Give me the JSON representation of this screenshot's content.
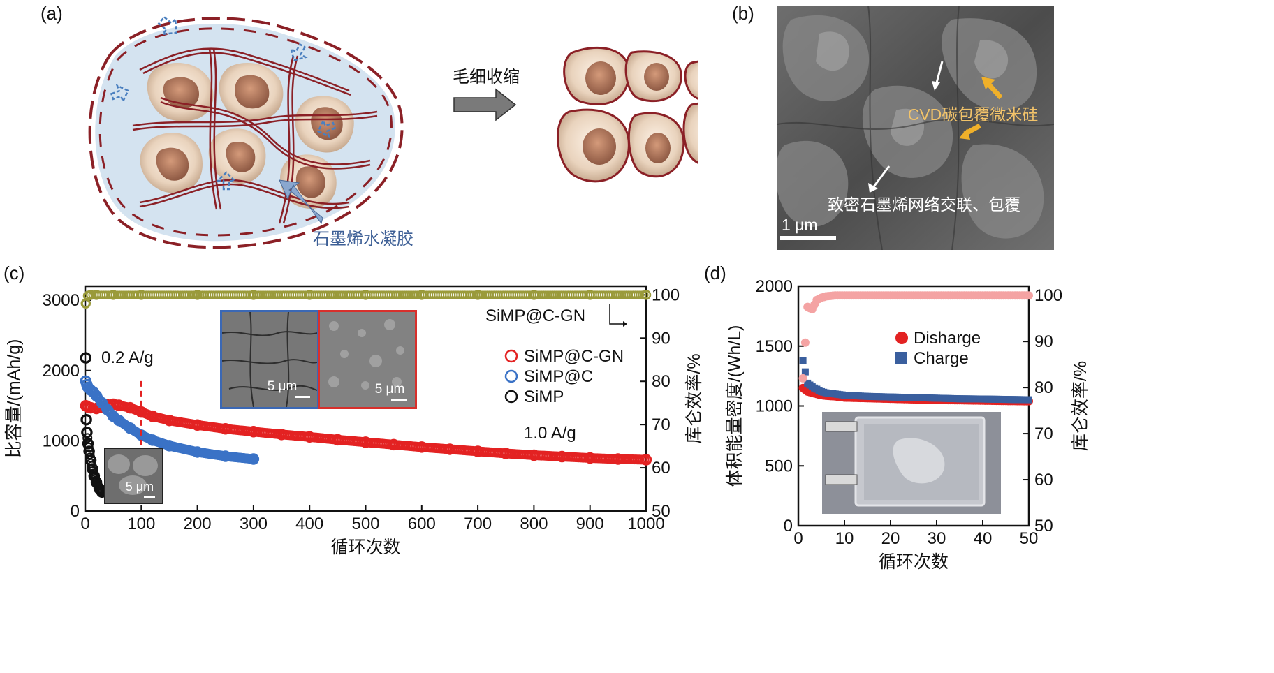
{
  "panel_labels": {
    "a": "(a)",
    "b": "(b)",
    "c": "(c)",
    "d": "(d)"
  },
  "schematic": {
    "process_label": "毛细收缩",
    "hydrogel_label": "石墨烯水凝胶"
  },
  "sem_b": {
    "label_top": "CVD碳包覆微米硅",
    "label_bottom": "致密石墨烯网络交联、包覆",
    "scale": "1 μm"
  },
  "chart_data": [
    {
      "type": "scatter",
      "panel": "c",
      "xlabel": "循环次数",
      "ylabel": "比容量/(mAh/g)",
      "y2label": "库仑效率/%",
      "xlim": [
        0,
        1000
      ],
      "ylim": [
        0,
        3200
      ],
      "y2lim": [
        50,
        102
      ],
      "xticks": [
        "0",
        "100",
        "200",
        "300",
        "400",
        "500",
        "600",
        "700",
        "800",
        "900",
        "1000"
      ],
      "yticks": [
        "0",
        "1000",
        "2000",
        "3000"
      ],
      "y2ticks": [
        "50",
        "60",
        "70",
        "80",
        "90",
        "100"
      ],
      "annotations": {
        "rate1": "0.2 A/g",
        "rate2": "1.0 A/g",
        "ce_series": "SiMP@C-GN",
        "scale1": "5 μm",
        "scale2": "5 μm",
        "scale3": "5 μm"
      },
      "legend": {
        "placement": "right",
        "entries": [
          "SiMP@C-GN",
          "SiMP@C",
          "SiMP"
        ]
      },
      "series": [
        {
          "name": "SiMP@C-GN",
          "color": "#e32222",
          "x": [
            1,
            3,
            5,
            10,
            20,
            30,
            40,
            50,
            60,
            80,
            100,
            120,
            150,
            200,
            250,
            300,
            350,
            400,
            450,
            500,
            550,
            600,
            650,
            700,
            750,
            800,
            850,
            900,
            950,
            1000
          ],
          "y": [
            1500,
            1490,
            1480,
            1470,
            1460,
            1480,
            1510,
            1520,
            1505,
            1470,
            1410,
            1350,
            1290,
            1225,
            1170,
            1130,
            1090,
            1055,
            1015,
            980,
            945,
            910,
            880,
            850,
            820,
            795,
            775,
            755,
            740,
            730
          ]
        },
        {
          "name": "SiMP@C",
          "color": "#3a72c6",
          "x": [
            1,
            3,
            5,
            10,
            15,
            20,
            30,
            40,
            50,
            60,
            80,
            100,
            120,
            150,
            200,
            250,
            300
          ],
          "y": [
            1850,
            1800,
            1760,
            1720,
            1690,
            1640,
            1540,
            1440,
            1350,
            1290,
            1180,
            1080,
            1010,
            930,
            840,
            780,
            740
          ]
        },
        {
          "name": "SiMP",
          "color": "#111111",
          "x": [
            1,
            2,
            3,
            5,
            7,
            10,
            13,
            16,
            20,
            25,
            30
          ],
          "y": [
            2180,
            1300,
            1120,
            960,
            850,
            720,
            600,
            500,
            410,
            320,
            270
          ]
        },
        {
          "name": "CE",
          "color": "#9a9a3a",
          "x": [
            1,
            5,
            10,
            20,
            50,
            100,
            200,
            300,
            400,
            500,
            600,
            700,
            800,
            900,
            1000
          ],
          "y": [
            98,
            99.8,
            100,
            100,
            100,
            100,
            100,
            100,
            100,
            100,
            100,
            100,
            100,
            100,
            100
          ]
        }
      ]
    },
    {
      "type": "scatter",
      "panel": "d",
      "xlabel": "循环次数",
      "ylabel": "体积能量密度/(Wh/L)",
      "y2label": "库仑效率/%",
      "xlim": [
        0,
        50
      ],
      "ylim": [
        0,
        2000
      ],
      "y2lim": [
        50,
        102
      ],
      "xticks": [
        "0",
        "10",
        "20",
        "30",
        "40",
        "50"
      ],
      "yticks": [
        "0",
        "500",
        "1000",
        "1500",
        "2000"
      ],
      "y2ticks": [
        "50",
        "60",
        "70",
        "80",
        "90",
        "100"
      ],
      "legend": {
        "placement": "center-right",
        "entries": [
          "Disharge",
          "Charge"
        ]
      },
      "series": [
        {
          "name": "Disharge",
          "color": "#e32222",
          "x": [
            1,
            2,
            3,
            4,
            5,
            6,
            8,
            10,
            15,
            20,
            25,
            30,
            35,
            40,
            45,
            50
          ],
          "y": [
            1150,
            1120,
            1110,
            1100,
            1090,
            1085,
            1080,
            1070,
            1065,
            1060,
            1055,
            1050,
            1048,
            1045,
            1042,
            1040
          ]
        },
        {
          "name": "Charge",
          "color": "#3a5f9e",
          "x": [
            1,
            2,
            3,
            4,
            5,
            6,
            8,
            10,
            15,
            20,
            25,
            30,
            35,
            40,
            45,
            50
          ],
          "y": [
            1380,
            1190,
            1160,
            1140,
            1120,
            1110,
            1100,
            1090,
            1080,
            1075,
            1070,
            1065,
            1060,
            1058,
            1055,
            1052
          ]
        },
        {
          "name": "CE",
          "color": "#f4a3a3",
          "x": [
            1,
            2,
            3,
            4,
            5,
            6,
            8,
            10,
            15,
            20,
            25,
            30,
            35,
            40,
            45,
            50
          ],
          "y": [
            82,
            97.5,
            97,
            99,
            99.5,
            99.8,
            100,
            100,
            100,
            100,
            100,
            100,
            100,
            100,
            100,
            100
          ]
        }
      ]
    }
  ]
}
